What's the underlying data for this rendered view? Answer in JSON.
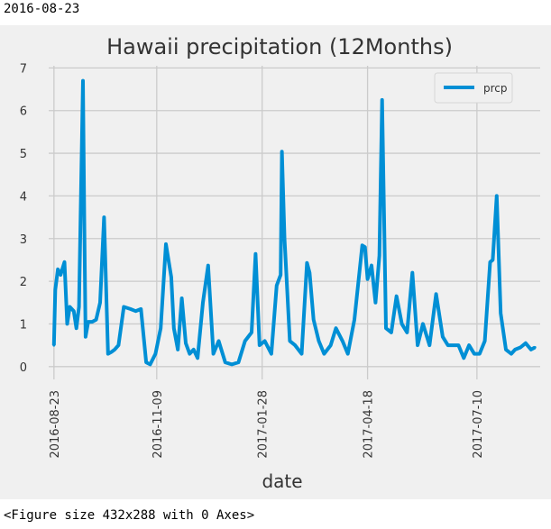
{
  "output_top": "2016-08-23",
  "output_bottom": "<Figure size 432x288 with 0 Axes>",
  "colors": {
    "figure_bg": "#f0f0f0",
    "axes_bg": "#f0f0f0",
    "grid": "#cbcbcb",
    "line": "#008fd5",
    "text": "#333333"
  },
  "chart_data": {
    "type": "line",
    "title": "Hawaii precipitation (12Months)",
    "xlabel": "date",
    "ylabel": "",
    "legend": {
      "entries": [
        "prcp"
      ],
      "placement": "top-right"
    },
    "grid": true,
    "xlim": [
      "2016-08-19",
      "2017-08-27"
    ],
    "ylim": [
      -0.3,
      7.05
    ],
    "yticks": [
      0,
      1,
      2,
      3,
      4,
      5,
      6,
      7
    ],
    "xticks": [
      "2016-08-23",
      "2016-11-09",
      "2017-01-28",
      "2017-04-18",
      "2017-07-10"
    ],
    "series": [
      {
        "name": "prcp",
        "x": [
          "2016-08-23",
          "2016-08-24",
          "2016-08-26",
          "2016-08-28",
          "2016-08-31",
          "2016-09-02",
          "2016-09-04",
          "2016-09-07",
          "2016-09-09",
          "2016-09-11",
          "2016-09-14",
          "2016-09-15",
          "2016-09-16",
          "2016-09-18",
          "2016-09-21",
          "2016-09-24",
          "2016-09-27",
          "2016-09-30",
          "2016-10-03",
          "2016-10-06",
          "2016-10-08",
          "2016-10-11",
          "2016-10-15",
          "2016-10-20",
          "2016-10-24",
          "2016-10-28",
          "2016-11-01",
          "2016-11-04",
          "2016-11-08",
          "2016-11-12",
          "2016-11-16",
          "2016-11-20",
          "2016-11-22",
          "2016-11-25",
          "2016-11-28",
          "2016-12-01",
          "2016-12-04",
          "2016-12-07",
          "2016-12-10",
          "2016-12-14",
          "2016-12-18",
          "2016-12-22",
          "2016-12-26",
          "2016-12-31",
          "2017-01-05",
          "2017-01-10",
          "2017-01-15",
          "2017-01-20",
          "2017-01-23",
          "2017-01-26",
          "2017-01-30",
          "2017-02-04",
          "2017-02-08",
          "2017-02-11",
          "2017-02-12",
          "2017-02-14",
          "2017-02-18",
          "2017-02-22",
          "2017-02-27",
          "2017-03-03",
          "2017-03-05",
          "2017-03-08",
          "2017-03-12",
          "2017-03-16",
          "2017-03-21",
          "2017-03-25",
          "2017-03-30",
          "2017-04-03",
          "2017-04-08",
          "2017-04-14",
          "2017-04-16",
          "2017-04-18",
          "2017-04-21",
          "2017-04-24",
          "2017-04-27",
          "2017-04-29",
          "2017-05-02",
          "2017-05-06",
          "2017-05-10",
          "2017-05-14",
          "2017-05-18",
          "2017-05-22",
          "2017-05-26",
          "2017-05-30",
          "2017-06-04",
          "2017-06-09",
          "2017-06-14",
          "2017-06-18",
          "2017-06-22",
          "2017-06-26",
          "2017-06-30",
          "2017-07-04",
          "2017-07-08",
          "2017-07-12",
          "2017-07-16",
          "2017-07-20",
          "2017-07-22",
          "2017-07-25",
          "2017-07-28",
          "2017-08-01",
          "2017-08-05",
          "2017-08-08",
          "2017-08-12",
          "2017-08-16",
          "2017-08-20",
          "2017-08-23"
        ],
        "y": [
          0.5,
          1.8,
          2.28,
          2.15,
          2.45,
          1.0,
          1.4,
          1.3,
          0.9,
          1.4,
          6.7,
          3.35,
          0.7,
          1.05,
          1.05,
          1.1,
          1.5,
          3.5,
          0.3,
          0.35,
          0.4,
          0.5,
          1.4,
          1.35,
          1.3,
          1.35,
          0.1,
          0.05,
          0.3,
          0.9,
          2.87,
          2.1,
          0.9,
          0.4,
          1.6,
          0.55,
          0.3,
          0.4,
          0.2,
          1.5,
          2.37,
          0.3,
          0.6,
          0.1,
          0.05,
          0.1,
          0.6,
          0.8,
          2.64,
          0.5,
          0.6,
          0.3,
          1.9,
          2.15,
          5.04,
          3.0,
          0.6,
          0.5,
          0.3,
          2.43,
          2.2,
          1.1,
          0.6,
          0.3,
          0.5,
          0.9,
          0.6,
          0.3,
          1.1,
          2.84,
          2.8,
          2.05,
          2.37,
          1.5,
          2.6,
          6.25,
          0.9,
          0.8,
          1.65,
          1.0,
          0.8,
          2.2,
          0.5,
          1.0,
          0.5,
          1.7,
          0.7,
          0.5,
          0.5,
          0.5,
          0.2,
          0.5,
          0.3,
          0.3,
          0.6,
          2.45,
          2.5,
          4.0,
          1.25,
          0.4,
          0.3,
          0.4,
          0.45,
          0.55,
          0.4,
          0.45
        ]
      }
    ]
  }
}
